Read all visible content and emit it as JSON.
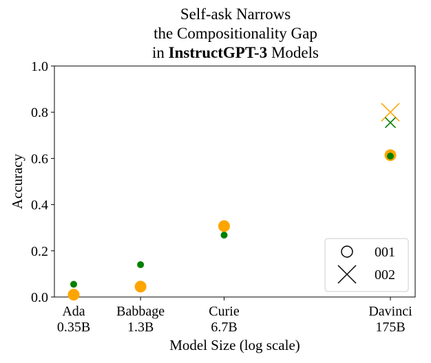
{
  "chart_data": {
    "type": "scatter",
    "title_lines": [
      "Self-ask Narrows",
      "the Compositionality Gap"
    ],
    "title_line3": {
      "prefix": "in ",
      "bold": "InstructGPT-3",
      "suffix": " Models"
    },
    "xlabel": "Model Size (log scale)",
    "ylabel": "Accuracy",
    "ylim": [
      0.0,
      1.0
    ],
    "yticks": [
      0.0,
      0.2,
      0.4,
      0.6,
      0.8,
      1.0
    ],
    "ytick_labels": [
      "0.0",
      "0.2",
      "0.4",
      "0.6",
      "0.8",
      "1.0"
    ],
    "x_scale": "log",
    "x_params_billions": [
      0.35,
      1.3,
      6.7,
      175
    ],
    "xtick_labels": [
      {
        "name": "Ada",
        "size": "0.35B"
      },
      {
        "name": "Babbage",
        "size": "1.3B"
      },
      {
        "name": "Curie",
        "size": "6.7B"
      },
      {
        "name": "Davinci",
        "size": "175B"
      }
    ],
    "colors": {
      "orange": "#FFA500",
      "green": "#008000"
    },
    "series": [
      {
        "name": "001 orange",
        "marker": "circle-large",
        "color": "#FFA500",
        "x": [
          0.35,
          1.3,
          6.7,
          175
        ],
        "y": [
          0.01,
          0.045,
          0.307,
          0.614
        ]
      },
      {
        "name": "001 green",
        "marker": "circle-small",
        "color": "#008000",
        "x": [
          0.35,
          1.3,
          6.7,
          175
        ],
        "y": [
          0.055,
          0.14,
          0.268,
          0.61
        ]
      },
      {
        "name": "002 orange",
        "marker": "x-large",
        "color": "#FFA500",
        "x": [
          175
        ],
        "y": [
          0.8
        ]
      },
      {
        "name": "002 green",
        "marker": "x-small",
        "color": "#008000",
        "x": [
          175
        ],
        "y": [
          0.755
        ]
      }
    ],
    "legend": {
      "placement": "lower-right",
      "entries": [
        {
          "label": "001",
          "marker": "circle"
        },
        {
          "label": "002",
          "marker": "x"
        }
      ]
    }
  }
}
